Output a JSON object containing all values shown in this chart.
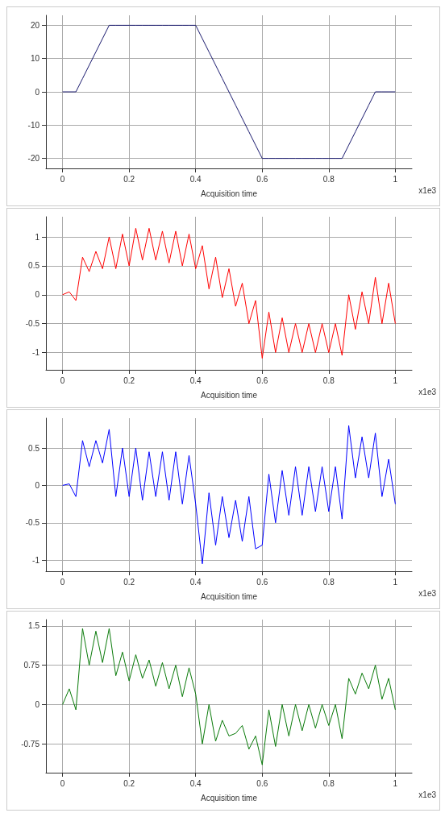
{
  "chart_data": [
    {
      "type": "line",
      "xlabel": "Acquisition time",
      "annotations": [
        "x1e3"
      ],
      "marker": "none",
      "grid": true,
      "x": [
        0,
        0.02,
        0.04,
        0.06,
        0.08,
        0.1,
        0.12,
        0.14,
        0.16,
        0.18,
        0.2,
        0.22,
        0.24,
        0.26,
        0.28,
        0.3,
        0.32,
        0.34,
        0.36,
        0.38,
        0.4,
        0.42,
        0.44,
        0.46,
        0.48,
        0.5,
        0.52,
        0.54,
        0.56,
        0.58,
        0.6,
        0.62,
        0.64,
        0.66,
        0.68,
        0.7,
        0.72,
        0.74,
        0.76,
        0.78,
        0.8,
        0.82,
        0.84,
        0.86,
        0.88,
        0.9,
        0.92,
        0.94,
        0.96,
        0.98,
        1
      ],
      "series": [
        {
          "color": "#1a1a6e",
          "values": [
            0,
            0,
            0,
            4,
            8,
            12,
            16,
            20,
            20,
            20,
            20,
            20,
            20,
            20,
            20,
            20,
            20,
            20,
            20,
            20,
            20,
            16,
            12,
            8,
            4,
            0,
            -4,
            -8,
            -12,
            -16,
            -20,
            -20,
            -20,
            -20,
            -20,
            -20,
            -20,
            -20,
            -20,
            -20,
            -20,
            -20,
            -20,
            -16,
            -12,
            -8,
            -4,
            0,
            0,
            0,
            0
          ]
        }
      ],
      "xlim": [
        -0.05,
        1.05
      ],
      "ylim": [
        -23,
        23
      ],
      "xticks": [
        0,
        0.2,
        0.4,
        0.6,
        0.8,
        1
      ],
      "yticks": [
        -20,
        -10,
        0,
        10,
        20
      ]
    },
    {
      "type": "line",
      "xlabel": "Acquisition time",
      "annotations": [
        "x1e3"
      ],
      "marker": "none",
      "grid": true,
      "x": [
        0,
        0.02,
        0.04,
        0.06,
        0.08,
        0.1,
        0.12,
        0.14,
        0.16,
        0.18,
        0.2,
        0.22,
        0.24,
        0.26,
        0.28,
        0.3,
        0.32,
        0.34,
        0.36,
        0.38,
        0.4,
        0.42,
        0.44,
        0.46,
        0.48,
        0.5,
        0.52,
        0.54,
        0.56,
        0.58,
        0.6,
        0.62,
        0.64,
        0.66,
        0.68,
        0.7,
        0.72,
        0.74,
        0.76,
        0.78,
        0.8,
        0.82,
        0.84,
        0.86,
        0.88,
        0.9,
        0.92,
        0.94,
        0.96,
        0.98,
        1
      ],
      "series": [
        {
          "color": "#ff0000",
          "values": [
            0,
            0.05,
            -0.1,
            0.65,
            0.4,
            0.75,
            0.45,
            1.0,
            0.45,
            1.05,
            0.5,
            1.15,
            0.6,
            1.15,
            0.6,
            1.1,
            0.55,
            1.1,
            0.5,
            1.05,
            0.45,
            0.85,
            0.1,
            0.65,
            -0.05,
            0.45,
            -0.2,
            0.2,
            -0.5,
            -0.1,
            -1.1,
            -0.3,
            -1.0,
            -0.4,
            -1.0,
            -0.5,
            -1.0,
            -0.5,
            -1.0,
            -0.5,
            -1.0,
            -0.5,
            -1.05,
            0.0,
            -0.6,
            0.05,
            -0.5,
            0.3,
            -0.5,
            0.2,
            -0.5
          ]
        }
      ],
      "xlim": [
        -0.05,
        1.05
      ],
      "ylim": [
        -1.3,
        1.35
      ],
      "xticks": [
        0,
        0.2,
        0.4,
        0.6,
        0.8,
        1
      ],
      "yticks": [
        -1,
        -0.5,
        0,
        0.5,
        1
      ]
    },
    {
      "type": "line",
      "xlabel": "Acquisition time",
      "annotations": [
        "x1e3"
      ],
      "marker": "none",
      "grid": true,
      "x": [
        0,
        0.02,
        0.04,
        0.06,
        0.08,
        0.1,
        0.12,
        0.14,
        0.16,
        0.18,
        0.2,
        0.22,
        0.24,
        0.26,
        0.28,
        0.3,
        0.32,
        0.34,
        0.36,
        0.38,
        0.4,
        0.42,
        0.44,
        0.46,
        0.48,
        0.5,
        0.52,
        0.54,
        0.56,
        0.58,
        0.6,
        0.62,
        0.64,
        0.66,
        0.68,
        0.7,
        0.72,
        0.74,
        0.76,
        0.78,
        0.8,
        0.82,
        0.84,
        0.86,
        0.88,
        0.9,
        0.92,
        0.94,
        0.96,
        0.98,
        1
      ],
      "series": [
        {
          "color": "#0000ff",
          "values": [
            0,
            0.02,
            -0.15,
            0.6,
            0.25,
            0.6,
            0.3,
            0.75,
            -0.15,
            0.5,
            -0.15,
            0.5,
            -0.2,
            0.45,
            -0.15,
            0.45,
            -0.2,
            0.45,
            -0.25,
            0.4,
            -0.25,
            -1.05,
            -0.1,
            -0.8,
            -0.15,
            -0.7,
            -0.2,
            -0.75,
            -0.15,
            -0.85,
            -0.8,
            0.15,
            -0.5,
            0.2,
            -0.4,
            0.25,
            -0.4,
            0.25,
            -0.35,
            0.25,
            -0.35,
            0.25,
            -0.45,
            0.8,
            0.1,
            0.65,
            0.1,
            0.7,
            -0.15,
            0.35,
            -0.25
          ]
        }
      ],
      "xlim": [
        -0.05,
        1.05
      ],
      "ylim": [
        -1.15,
        0.9
      ],
      "xticks": [
        0,
        0.2,
        0.4,
        0.6,
        0.8,
        1
      ],
      "yticks": [
        -1,
        -0.5,
        0,
        0.5
      ]
    },
    {
      "type": "line",
      "xlabel": "Acquisition time",
      "annotations": [
        "x1e3"
      ],
      "marker": "none",
      "grid": true,
      "x": [
        0,
        0.02,
        0.04,
        0.06,
        0.08,
        0.1,
        0.12,
        0.14,
        0.16,
        0.18,
        0.2,
        0.22,
        0.24,
        0.26,
        0.28,
        0.3,
        0.32,
        0.34,
        0.36,
        0.38,
        0.4,
        0.42,
        0.44,
        0.46,
        0.48,
        0.5,
        0.52,
        0.54,
        0.56,
        0.58,
        0.6,
        0.62,
        0.64,
        0.66,
        0.68,
        0.7,
        0.72,
        0.74,
        0.76,
        0.78,
        0.8,
        0.82,
        0.84,
        0.86,
        0.88,
        0.9,
        0.92,
        0.94,
        0.96,
        0.98,
        1
      ],
      "series": [
        {
          "color": "#0a7a0a",
          "values": [
            0,
            0.3,
            -0.1,
            1.45,
            0.75,
            1.4,
            0.8,
            1.45,
            0.55,
            1.0,
            0.45,
            0.95,
            0.5,
            0.85,
            0.35,
            0.8,
            0.3,
            0.75,
            0.15,
            0.7,
            0.2,
            -0.75,
            0.0,
            -0.7,
            -0.3,
            -0.6,
            -0.55,
            -0.4,
            -0.85,
            -0.6,
            -1.15,
            -0.1,
            -0.8,
            0.0,
            -0.6,
            0.0,
            -0.5,
            0.0,
            -0.45,
            0.0,
            -0.4,
            0.0,
            -0.65,
            0.5,
            0.2,
            0.6,
            0.3,
            0.75,
            0.1,
            0.5,
            -0.1
          ]
        }
      ],
      "xlim": [
        -0.05,
        1.05
      ],
      "ylim": [
        -1.3,
        1.62
      ],
      "xticks": [
        0,
        0.2,
        0.4,
        0.6,
        0.8,
        1
      ],
      "yticks": [
        -0.75,
        0,
        0.75,
        1.5
      ]
    }
  ]
}
